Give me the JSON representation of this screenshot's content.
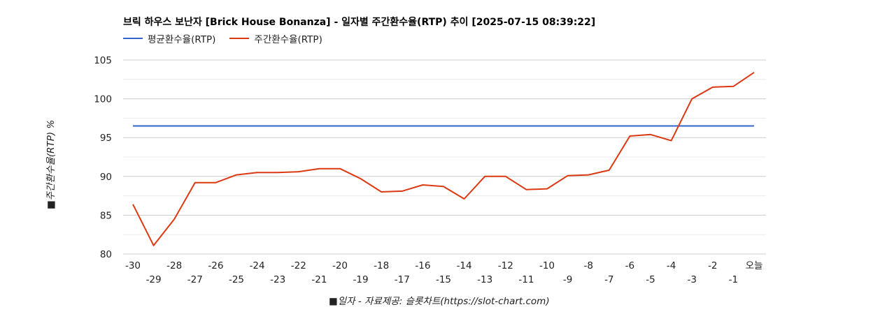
{
  "title": "브릭 하우스 보난자 [Brick House Bonanza] - 일자별 주간환수율(RTP) 추이 [2025-07-15 08:39:22]",
  "legend": {
    "avg_label": "평균환수율(RTP)",
    "weekly_label": "주간환수율(RTP)"
  },
  "colors": {
    "avg": "#3366cc",
    "weekly": "#dc3912",
    "grid": "#cccccc",
    "minor_grid": "#ebebeb"
  },
  "chart_data": {
    "type": "line",
    "title": "브릭 하우스 보난자 [Brick House Bonanza] - 일자별 주간환수율(RTP) 추이 [2025-07-15 08:39:22]",
    "xlabel": "■일자 - 자료제공: 슬롯차트(https://slot-chart.com)",
    "ylabel": "■주간환수율(RTP) %",
    "ylim": [
      80,
      105
    ],
    "yticks": [
      80,
      85,
      90,
      95,
      100,
      105
    ],
    "categories": [
      "-30",
      "-29",
      "-28",
      "-27",
      "-26",
      "-25",
      "-24",
      "-23",
      "-22",
      "-21",
      "-20",
      "-19",
      "-18",
      "-17",
      "-16",
      "-15",
      "-14",
      "-13",
      "-12",
      "-11",
      "-10",
      "-9",
      "-8",
      "-7",
      "-6",
      "-5",
      "-4",
      "-3",
      "-2",
      "-1",
      "오늘"
    ],
    "series": [
      {
        "name": "평균환수율(RTP)",
        "values": [
          96.5,
          96.5,
          96.5,
          96.5,
          96.5,
          96.5,
          96.5,
          96.5,
          96.5,
          96.5,
          96.5,
          96.5,
          96.5,
          96.5,
          96.5,
          96.5,
          96.5,
          96.5,
          96.5,
          96.5,
          96.5,
          96.5,
          96.5,
          96.5,
          96.5,
          96.5,
          96.5,
          96.5,
          96.5,
          96.5,
          96.5
        ]
      },
      {
        "name": "주간환수율(RTP)",
        "values": [
          86.4,
          81.1,
          84.5,
          89.2,
          89.2,
          90.2,
          90.5,
          90.5,
          90.6,
          91.0,
          91.0,
          89.7,
          88.0,
          88.1,
          88.9,
          88.7,
          87.1,
          90.0,
          90.0,
          88.3,
          88.4,
          90.1,
          90.2,
          90.8,
          95.2,
          95.4,
          94.6,
          100.0,
          101.5,
          101.6,
          103.4
        ]
      }
    ],
    "grid": true,
    "legend_position": "top-left"
  }
}
